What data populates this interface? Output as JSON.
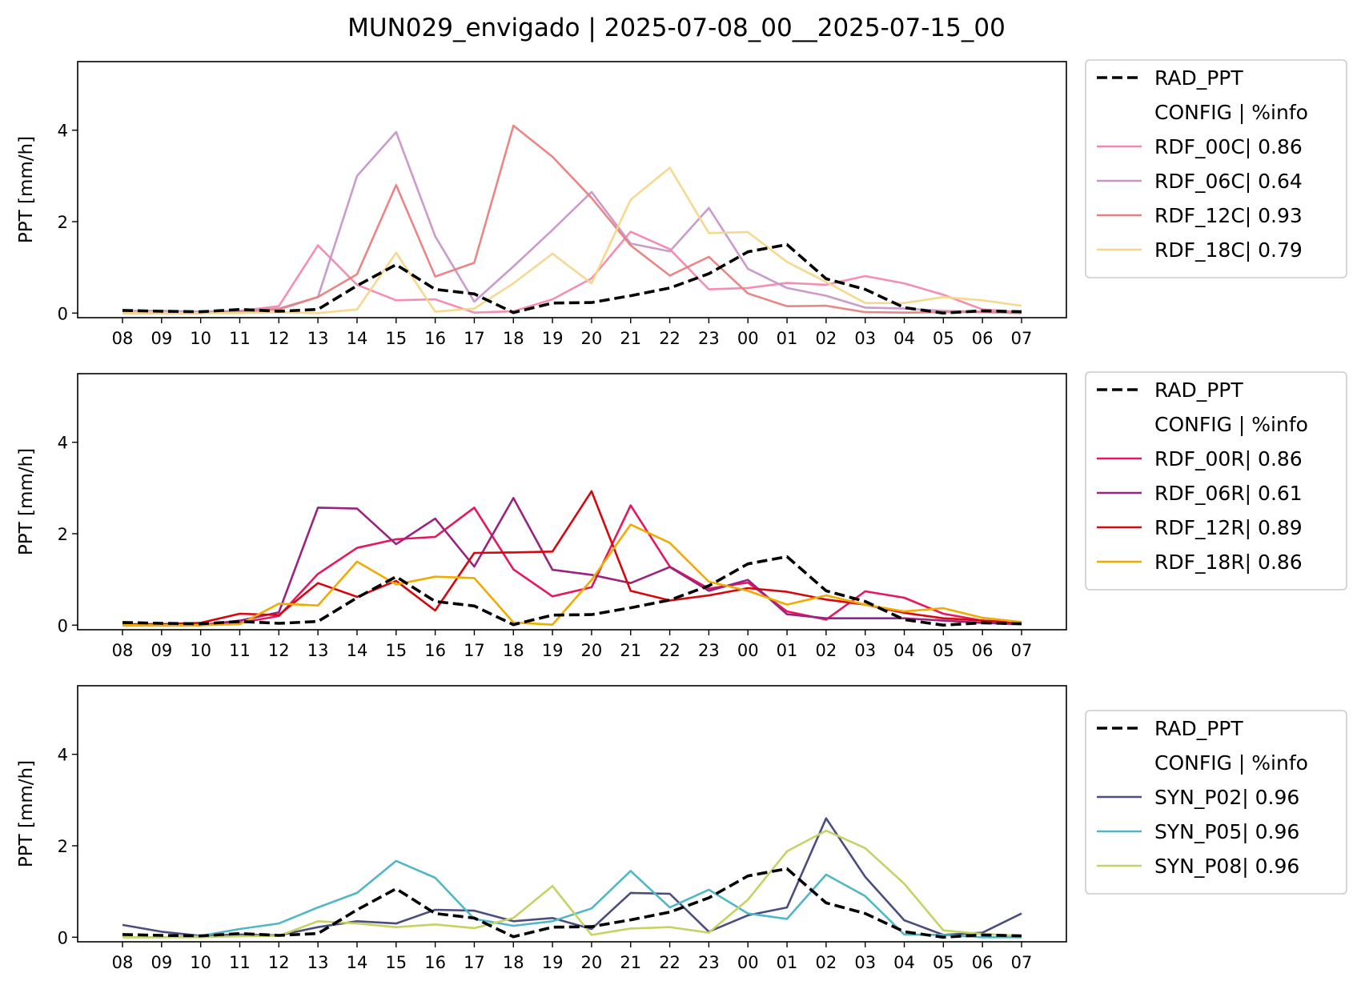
{
  "title": "MUN029_envigado | 2025-07-08_00__2025-07-15_00",
  "colors": {
    "RAD_PPT": "#000000",
    "RDF_00C": "#f488ac",
    "RDF_06C": "#c896c8",
    "RDF_12C": "#e97f7d",
    "RDF_18C": "#f6d788",
    "RDF_00R": "#e8175d",
    "RDF_06R": "#99237f",
    "RDF_12R": "#d7070e",
    "RDF_18R": "#f1ab00",
    "SYN_P02": "#4a4e7f",
    "SYN_P05": "#4fb7c6",
    "SYN_P08": "#c6d264"
  },
  "chart_data": [
    {
      "type": "line",
      "ylabel": "PPT [mm/h]",
      "ylim": [
        -0.1,
        5.5
      ],
      "yticks": [
        0,
        2,
        4
      ],
      "categories": [
        "08",
        "09",
        "10",
        "11",
        "12",
        "13",
        "14",
        "15",
        "16",
        "17",
        "18",
        "19",
        "20",
        "21",
        "22",
        "23",
        "00",
        "01",
        "02",
        "03",
        "04",
        "05",
        "06",
        "07"
      ],
      "legend_header": "CONFIG  | %info",
      "legend_position": "outside right",
      "series": [
        {
          "name": "RDF_00C| 0.86",
          "key": "RDF_00C",
          "style": "solid",
          "values": [
            0.0,
            0.0,
            0.0,
            0.05,
            0.15,
            1.48,
            0.62,
            0.28,
            0.3,
            0.01,
            0.04,
            0.3,
            0.76,
            1.78,
            1.4,
            0.52,
            0.55,
            0.66,
            0.62,
            0.81,
            0.65,
            0.4,
            0.08,
            0.02
          ]
        },
        {
          "name": "RDF_06C| 0.64",
          "key": "RDF_06C",
          "style": "solid",
          "values": [
            0.05,
            0.05,
            0.03,
            0.05,
            0.1,
            0.35,
            3.0,
            3.96,
            1.68,
            0.25,
            1.02,
            1.82,
            2.65,
            1.52,
            1.35,
            2.3,
            0.97,
            0.55,
            0.38,
            0.12,
            0.1,
            0.05,
            0.03,
            0.02
          ]
        },
        {
          "name": "RDF_12C| 0.93",
          "key": "RDF_12C",
          "style": "solid",
          "values": [
            0.0,
            0.0,
            0.0,
            0.02,
            0.08,
            0.35,
            0.85,
            2.8,
            0.8,
            1.1,
            4.1,
            3.42,
            2.52,
            1.48,
            0.82,
            1.23,
            0.43,
            0.15,
            0.16,
            0.02,
            0.01,
            0.02,
            0.02,
            0.0
          ]
        },
        {
          "name": "RDF_18C| 0.79",
          "key": "RDF_18C",
          "style": "solid",
          "values": [
            0.0,
            0.0,
            0.0,
            0.0,
            0.02,
            0.0,
            0.08,
            1.32,
            0.03,
            0.1,
            0.65,
            1.3,
            0.65,
            2.48,
            3.18,
            1.75,
            1.77,
            1.12,
            0.68,
            0.22,
            0.22,
            0.35,
            0.28,
            0.16
          ]
        },
        {
          "name": "RAD_PPT",
          "key": "RAD_PPT",
          "style": "dashed",
          "legend_first": true,
          "values": [
            0.06,
            0.04,
            0.03,
            0.08,
            0.04,
            0.08,
            0.6,
            1.06,
            0.52,
            0.42,
            0.01,
            0.22,
            0.23,
            0.38,
            0.55,
            0.86,
            1.34,
            1.5,
            0.75,
            0.52,
            0.12,
            0.0,
            0.05,
            0.03
          ]
        }
      ]
    },
    {
      "type": "line",
      "ylabel": "PPT [mm/h]",
      "ylim": [
        -0.1,
        5.5
      ],
      "yticks": [
        0,
        2,
        4
      ],
      "categories": [
        "08",
        "09",
        "10",
        "11",
        "12",
        "13",
        "14",
        "15",
        "16",
        "17",
        "18",
        "19",
        "20",
        "21",
        "22",
        "23",
        "00",
        "01",
        "02",
        "03",
        "04",
        "05",
        "06",
        "07"
      ],
      "legend_header": "CONFIG  | %info",
      "legend_position": "outside right",
      "series": [
        {
          "name": "RDF_00R| 0.86",
          "key": "RDF_00R",
          "style": "solid",
          "values": [
            0.0,
            0.0,
            0.0,
            0.05,
            0.2,
            1.12,
            1.69,
            1.88,
            1.93,
            2.57,
            1.22,
            0.63,
            0.83,
            2.62,
            1.28,
            0.8,
            0.93,
            0.3,
            0.12,
            0.74,
            0.6,
            0.25,
            0.1,
            0.05
          ]
        },
        {
          "name": "RDF_06R| 0.61",
          "key": "RDF_06R",
          "style": "solid",
          "values": [
            0.0,
            0.0,
            0.0,
            0.1,
            0.28,
            2.57,
            2.55,
            1.77,
            2.33,
            1.28,
            2.78,
            1.21,
            1.1,
            0.92,
            1.27,
            0.75,
            0.99,
            0.24,
            0.15,
            0.15,
            0.15,
            0.1,
            0.05,
            0.02
          ]
        },
        {
          "name": "RDF_12R| 0.89",
          "key": "RDF_12R",
          "style": "solid",
          "values": [
            0.02,
            0.02,
            0.05,
            0.25,
            0.22,
            0.92,
            0.62,
            0.97,
            0.32,
            1.58,
            1.59,
            1.61,
            2.93,
            0.75,
            0.54,
            0.65,
            0.81,
            0.73,
            0.56,
            0.45,
            0.27,
            0.15,
            0.1,
            0.05
          ]
        },
        {
          "name": "RDF_18R| 0.86",
          "key": "RDF_18R",
          "style": "solid",
          "values": [
            0.0,
            0.0,
            0.0,
            0.02,
            0.47,
            0.43,
            1.39,
            0.89,
            1.06,
            1.03,
            0.06,
            0.01,
            0.99,
            2.2,
            1.8,
            0.95,
            0.75,
            0.45,
            0.65,
            0.45,
            0.3,
            0.37,
            0.16,
            0.07
          ]
        },
        {
          "name": "RAD_PPT",
          "key": "RAD_PPT",
          "style": "dashed",
          "legend_first": true,
          "values": [
            0.06,
            0.04,
            0.03,
            0.08,
            0.04,
            0.08,
            0.6,
            1.06,
            0.52,
            0.42,
            0.01,
            0.22,
            0.23,
            0.38,
            0.55,
            0.86,
            1.34,
            1.5,
            0.75,
            0.52,
            0.12,
            0.0,
            0.05,
            0.03
          ]
        }
      ]
    },
    {
      "type": "line",
      "ylabel": "PPT [mm/h]",
      "ylim": [
        -0.1,
        5.5
      ],
      "yticks": [
        0,
        2,
        4
      ],
      "categories": [
        "08",
        "09",
        "10",
        "11",
        "12",
        "13",
        "14",
        "15",
        "16",
        "17",
        "18",
        "19",
        "20",
        "21",
        "22",
        "23",
        "00",
        "01",
        "02",
        "03",
        "04",
        "05",
        "06",
        "07"
      ],
      "legend_header": "CONFIG  | %info",
      "legend_position": "outside right",
      "series": [
        {
          "name": "SYN_P02| 0.96",
          "key": "SYN_P02",
          "style": "solid",
          "values": [
            0.27,
            0.12,
            0.03,
            0.06,
            0.04,
            0.22,
            0.35,
            0.3,
            0.6,
            0.58,
            0.35,
            0.42,
            0.18,
            0.97,
            0.95,
            0.12,
            0.48,
            0.65,
            2.6,
            1.32,
            0.37,
            0.05,
            0.1,
            0.52
          ]
        },
        {
          "name": "SYN_P05| 0.96",
          "key": "SYN_P05",
          "style": "solid",
          "values": [
            0.0,
            0.0,
            0.03,
            0.18,
            0.3,
            0.65,
            0.97,
            1.67,
            1.3,
            0.4,
            0.25,
            0.35,
            0.63,
            1.45,
            0.65,
            1.04,
            0.52,
            0.4,
            1.37,
            0.9,
            0.06,
            0.05,
            0.0,
            0.0
          ]
        },
        {
          "name": "SYN_P08| 0.96",
          "key": "SYN_P08",
          "style": "solid",
          "values": [
            0.0,
            0.0,
            0.0,
            0.02,
            0.03,
            0.35,
            0.3,
            0.22,
            0.28,
            0.2,
            0.42,
            1.12,
            0.05,
            0.19,
            0.22,
            0.1,
            0.82,
            1.88,
            2.33,
            1.95,
            1.17,
            0.15,
            0.07,
            0.03
          ]
        },
        {
          "name": "RAD_PPT",
          "key": "RAD_PPT",
          "style": "dashed",
          "legend_first": true,
          "values": [
            0.06,
            0.04,
            0.03,
            0.08,
            0.04,
            0.08,
            0.6,
            1.06,
            0.52,
            0.42,
            0.01,
            0.22,
            0.23,
            0.38,
            0.55,
            0.86,
            1.34,
            1.5,
            0.75,
            0.52,
            0.12,
            0.0,
            0.05,
            0.03
          ]
        }
      ]
    }
  ]
}
